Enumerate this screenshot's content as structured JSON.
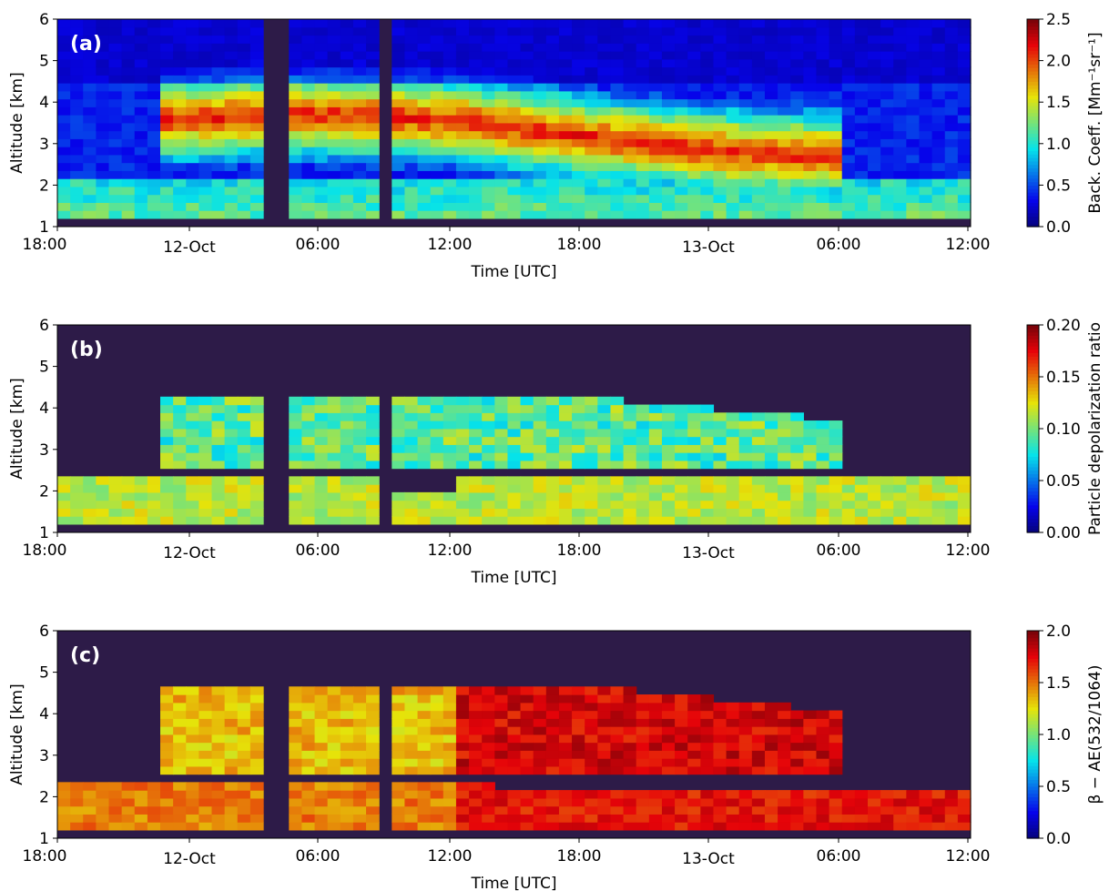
{
  "chart_data": [
    {
      "type": "heatmap",
      "panel_label": "(a)",
      "xlabel": "Time [UTC]",
      "ylabel": "Altitude [km]",
      "x_ticks": [
        "18:00",
        "12-Oct",
        "06:00",
        "12:00",
        "18:00",
        "13-Oct",
        "06:00",
        "12:00"
      ],
      "y_ticks": [
        "1",
        "2",
        "3",
        "4",
        "5",
        "6"
      ],
      "ylim": [
        1,
        6
      ],
      "colorbar": {
        "label": "Back. Coeff. [Mm⁻¹sr⁻¹]",
        "range": [
          0.0,
          2.5
        ],
        "ticks": [
          "0.0",
          "0.5",
          "1.0",
          "1.5",
          "2.0",
          "2.5"
        ],
        "colormap": "jet"
      },
      "background_color": "#2d1b48"
    },
    {
      "type": "heatmap",
      "panel_label": "(b)",
      "xlabel": "Time [UTC]",
      "ylabel": "Altitude [km]",
      "x_ticks": [
        "18:00",
        "12-Oct",
        "06:00",
        "12:00",
        "18:00",
        "13-Oct",
        "06:00",
        "12:00"
      ],
      "y_ticks": [
        "1",
        "2",
        "3",
        "4",
        "5",
        "6"
      ],
      "ylim": [
        1,
        6
      ],
      "colorbar": {
        "label": "Particle depolarization ratio",
        "range": [
          0.0,
          0.2
        ],
        "ticks": [
          "0.00",
          "0.05",
          "0.10",
          "0.15",
          "0.20"
        ],
        "colormap": "jet"
      },
      "background_color": "#2d1b48"
    },
    {
      "type": "heatmap",
      "panel_label": "(c)",
      "xlabel": "Time [UTC]",
      "ylabel": "Altitude [km]",
      "x_ticks": [
        "18:00",
        "12-Oct",
        "06:00",
        "12:00",
        "18:00",
        "13-Oct",
        "06:00",
        "12:00"
      ],
      "y_ticks": [
        "1",
        "2",
        "3",
        "4",
        "5",
        "6"
      ],
      "ylim": [
        1,
        6
      ],
      "colorbar": {
        "label": "β − AE(532/1064)",
        "range": [
          0.0,
          2.0
        ],
        "ticks": [
          "0.0",
          "0.5",
          "1.0",
          "1.5",
          "2.0"
        ],
        "colormap": "jet"
      },
      "background_color": "#2d1b48"
    }
  ]
}
